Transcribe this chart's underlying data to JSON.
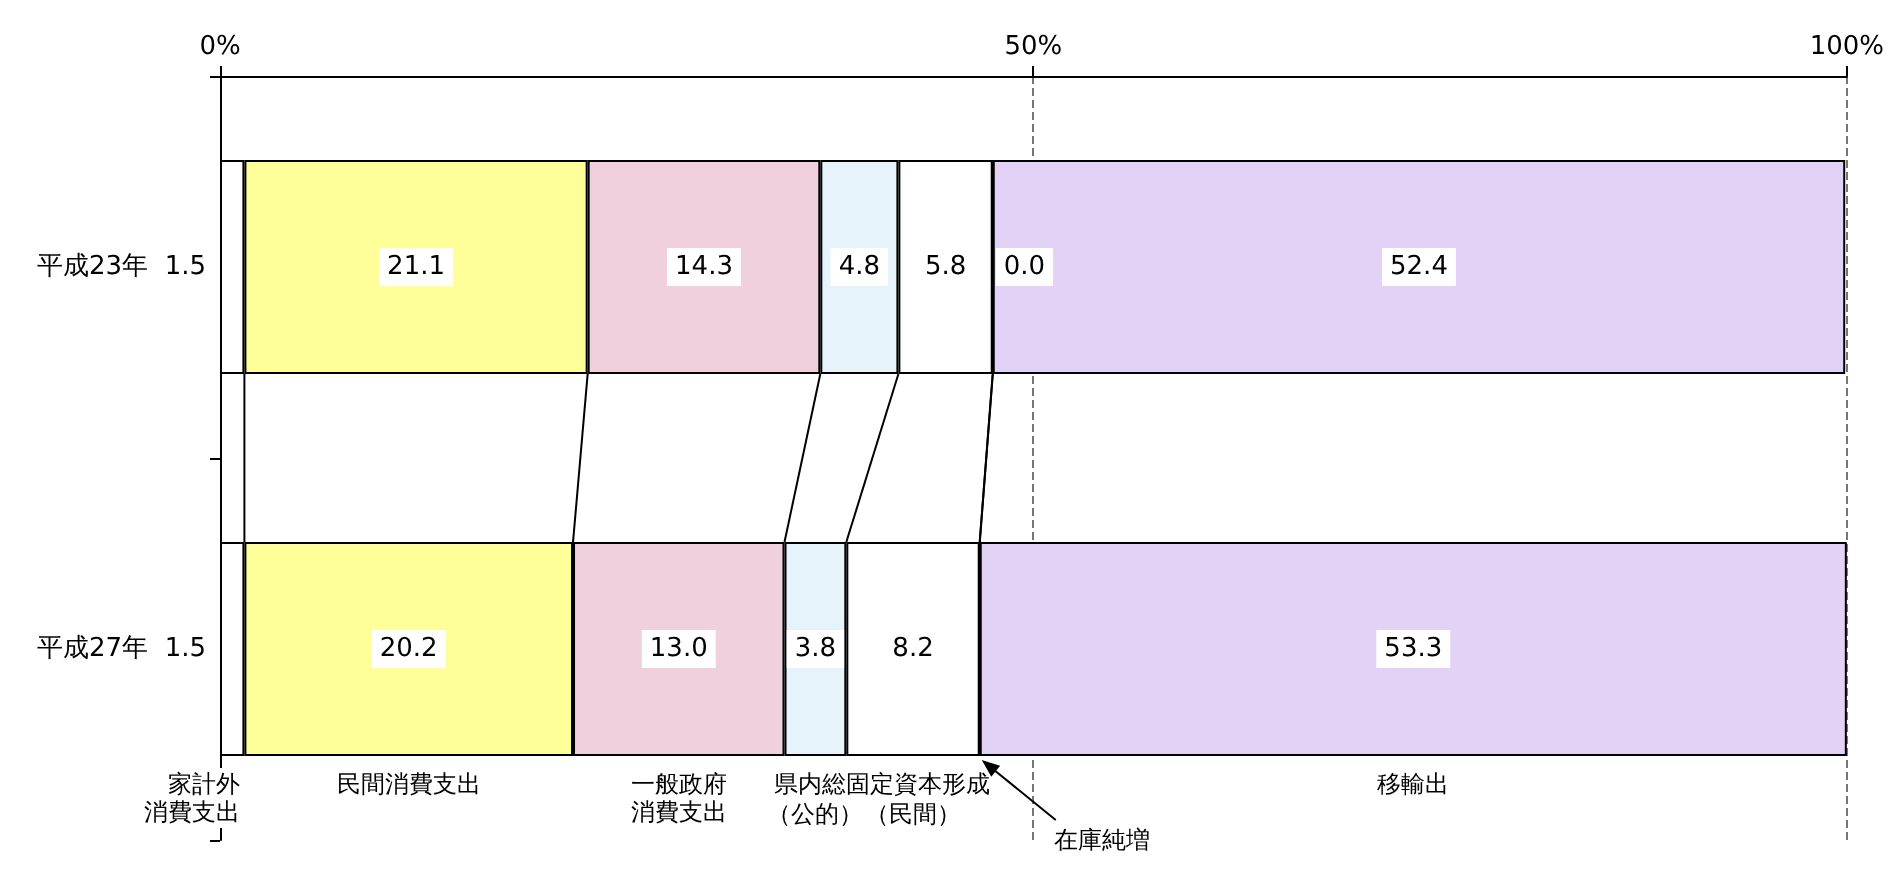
{
  "chart_data": {
    "type": "bar",
    "orientation": "horizontal",
    "stacked": true,
    "categories": [
      "平成23年",
      "平成27年"
    ],
    "xlim": [
      0,
      100
    ],
    "xticks": [
      {
        "value": 0,
        "label": "0%"
      },
      {
        "value": 50,
        "label": "50%"
      },
      {
        "value": 100,
        "label": "100%"
      }
    ],
    "grid": "x",
    "series": [
      {
        "name": "家計外消費支出",
        "color": "#ffffff",
        "values": [
          1.5,
          1.5
        ],
        "value_labels": [
          "1.5",
          "1.5"
        ]
      },
      {
        "name": "民間消費支出",
        "color": "#ffff99",
        "values": [
          21.1,
          20.2
        ],
        "value_labels": [
          "21.1",
          "20.2"
        ]
      },
      {
        "name": "一般政府消費支出",
        "color": "#f0d0dc",
        "values": [
          14.3,
          13.0
        ],
        "value_labels": [
          "14.3",
          "13.0"
        ]
      },
      {
        "name": "（公的）",
        "color": "#e6f3fa",
        "values": [
          4.8,
          3.8
        ],
        "value_labels": [
          "4.8",
          "3.8"
        ]
      },
      {
        "name": "（民間）",
        "color": "#ffffff",
        "values": [
          5.8,
          8.2
        ],
        "value_labels": [
          "5.8",
          "8.2"
        ]
      },
      {
        "name": "在庫純増",
        "values": [
          0.0,
          0.0
        ],
        "value_labels": [
          "0.0",
          null
        ]
      },
      {
        "name": "移輸出",
        "color": "#e2d2f5",
        "values": [
          52.4,
          53.3
        ],
        "value_labels": [
          "52.4",
          "53.3"
        ]
      }
    ],
    "annotations": [
      "県内総固定資本形成"
    ]
  }
}
